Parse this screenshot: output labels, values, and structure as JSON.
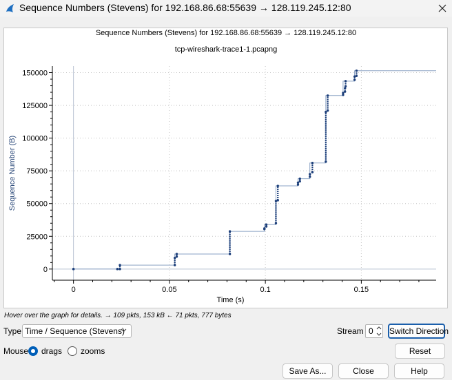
{
  "window": {
    "title": "Sequence Numbers (Stevens) for 192.168.86.68:55639 → 128.119.245.12:80",
    "app_icon": "wireshark-fin-icon",
    "close_icon": "close-icon"
  },
  "chart_data": {
    "type": "scatter",
    "title": "Sequence Numbers (Stevens) for 192.168.86.68:55639 → 128.119.245.12:80",
    "subtitle": "tcp-wireshark-trace1-1.pcapng",
    "xlabel": "Time (s)",
    "ylabel": "Sequence Number (B)",
    "xlim": [
      -0.011,
      0.189
    ],
    "ylim": [
      -8500,
      155000
    ],
    "x_ticks": [
      0,
      0.05,
      0.1,
      0.15
    ],
    "x_tick_labels": [
      "0",
      "0.05",
      "0.1",
      "0.15"
    ],
    "y_ticks": [
      0,
      25000,
      50000,
      75000,
      100000,
      125000,
      150000
    ],
    "y_tick_labels": [
      "0",
      "25000",
      "50000",
      "75000",
      "100000",
      "125000",
      "150000"
    ],
    "grid": true,
    "colors": {
      "points": "#1d3f7a",
      "window_line": "#8aa2c4",
      "axis_label": "#2c4a7a"
    },
    "bursts": [
      {
        "t": 0.0,
        "from": 0,
        "to": 0
      },
      {
        "t": 0.0229,
        "from": 0,
        "to": 0
      },
      {
        "t": 0.0242,
        "from": 0,
        "to": 3000
      },
      {
        "t": 0.0528,
        "from": 3000,
        "to": 8500
      },
      {
        "t": 0.0538,
        "from": 9500,
        "to": 11500
      },
      {
        "t": 0.0815,
        "from": 11500,
        "to": 28800
      },
      {
        "t": 0.0995,
        "from": 30500,
        "to": 31000
      },
      {
        "t": 0.1005,
        "from": 32500,
        "to": 34000
      },
      {
        "t": 0.1055,
        "from": 35000,
        "to": 52000
      },
      {
        "t": 0.1065,
        "from": 52500,
        "to": 63500
      },
      {
        "t": 0.117,
        "from": 64500,
        "to": 66000
      },
      {
        "t": 0.118,
        "from": 67000,
        "to": 69000
      },
      {
        "t": 0.1232,
        "from": 70500,
        "to": 72500
      },
      {
        "t": 0.1245,
        "from": 74000,
        "to": 81000
      },
      {
        "t": 0.1315,
        "from": 82000,
        "to": 120000
      },
      {
        "t": 0.1325,
        "from": 121000,
        "to": 132500
      },
      {
        "t": 0.1405,
        "from": 133000,
        "to": 134500
      },
      {
        "t": 0.1415,
        "from": 135500,
        "to": 138000
      },
      {
        "t": 0.1418,
        "from": 139500,
        "to": 143500
      },
      {
        "t": 0.1465,
        "from": 144500,
        "to": 147000
      },
      {
        "t": 0.1475,
        "from": 147500,
        "to": 151500
      }
    ],
    "window_line": [
      [
        0.0,
        0
      ],
      [
        0.0242,
        0
      ],
      [
        0.0242,
        3000
      ],
      [
        0.0528,
        3000
      ],
      [
        0.0528,
        11500
      ],
      [
        0.0815,
        11500
      ],
      [
        0.0815,
        28800
      ],
      [
        0.0995,
        28800
      ],
      [
        0.0995,
        34000
      ],
      [
        0.1055,
        34000
      ],
      [
        0.1055,
        63500
      ],
      [
        0.117,
        63500
      ],
      [
        0.117,
        69000
      ],
      [
        0.1232,
        69000
      ],
      [
        0.1232,
        81000
      ],
      [
        0.1315,
        81000
      ],
      [
        0.1315,
        132500
      ],
      [
        0.1405,
        132500
      ],
      [
        0.1405,
        143500
      ],
      [
        0.1465,
        143500
      ],
      [
        0.1465,
        151500
      ],
      [
        0.189,
        151500
      ]
    ]
  },
  "hint": "Hover over the graph for details. → 109 pkts, 153 kB ← 71 pkts, 777 bytes",
  "controls": {
    "type_label": "Type",
    "type_value": "Time / Sequence (Stevens)",
    "stream_label": "Stream",
    "stream_value": "0",
    "switch_direction": "Switch Direction",
    "mouse_label": "Mouse",
    "drags_label": "drags",
    "zooms_label": "zooms",
    "reset": "Reset",
    "save_as": "Save As...",
    "close": "Close",
    "help": "Help"
  }
}
